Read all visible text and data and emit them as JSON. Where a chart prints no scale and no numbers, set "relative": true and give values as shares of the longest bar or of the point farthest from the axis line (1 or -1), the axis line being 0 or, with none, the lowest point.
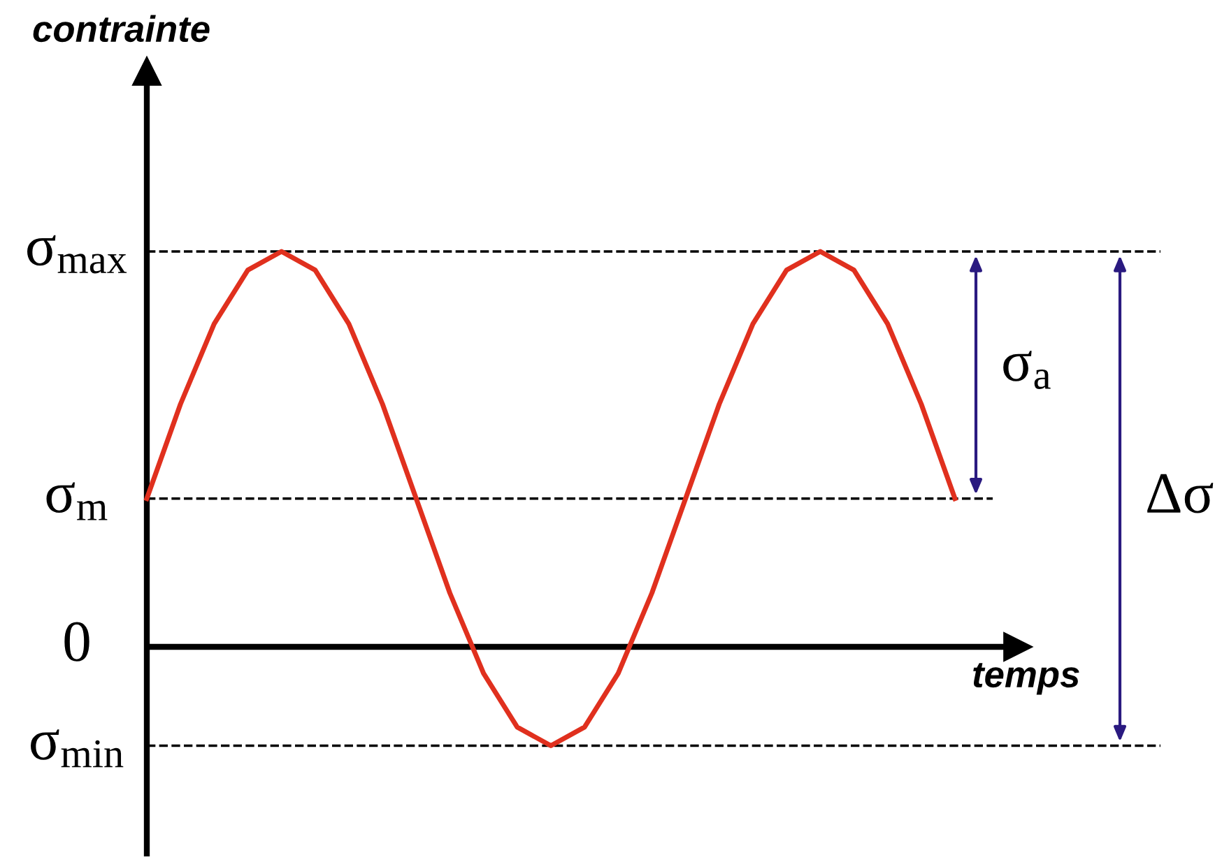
{
  "chart_data": {
    "type": "line",
    "relative": true,
    "xlabel": "temps",
    "categories": [
      null,
      null,
      null,
      null,
      null,
      null,
      null,
      null,
      null,
      null,
      null,
      null,
      null,
      null,
      null,
      null,
      null,
      null,
      null,
      null,
      null,
      null,
      null,
      null,
      null
    ],
    "series": [
      {
        "color": "#e0301e",
        "values": [
          0.375,
          0.614,
          0.817,
          0.953,
          1,
          0.953,
          0.817,
          0.614,
          0.375,
          0.136,
          -0.067,
          -0.203,
          -0.25,
          -0.203,
          -0.067,
          0.136,
          0.375,
          0.614,
          0.817,
          0.953,
          1,
          0.953,
          0.817,
          0.614,
          0.375
        ]
      }
    ],
    "ref_lines": [
      {
        "axis": "y",
        "value": 1,
        "label": "σ$_{max}$",
        "line_style": "dashed",
        "color": "#000000"
      },
      {
        "axis": "y",
        "value": 0.375,
        "label": "σ$_{m}$",
        "line_style": "dashed",
        "color": "#000000"
      },
      {
        "axis": "y",
        "value": 0,
        "label": "0",
        "line_style": "solid",
        "color": "#000000"
      },
      {
        "axis": "y",
        "value": -0.25,
        "label": "σ$_{min}$",
        "line_style": "dashed",
        "color": "#000000"
      }
    ],
    "annotations": [
      "σ$_{a}$",
      "Δσ",
      "contrainte"
    ],
    "marker": "none",
    "line_style": "solid"
  }
}
